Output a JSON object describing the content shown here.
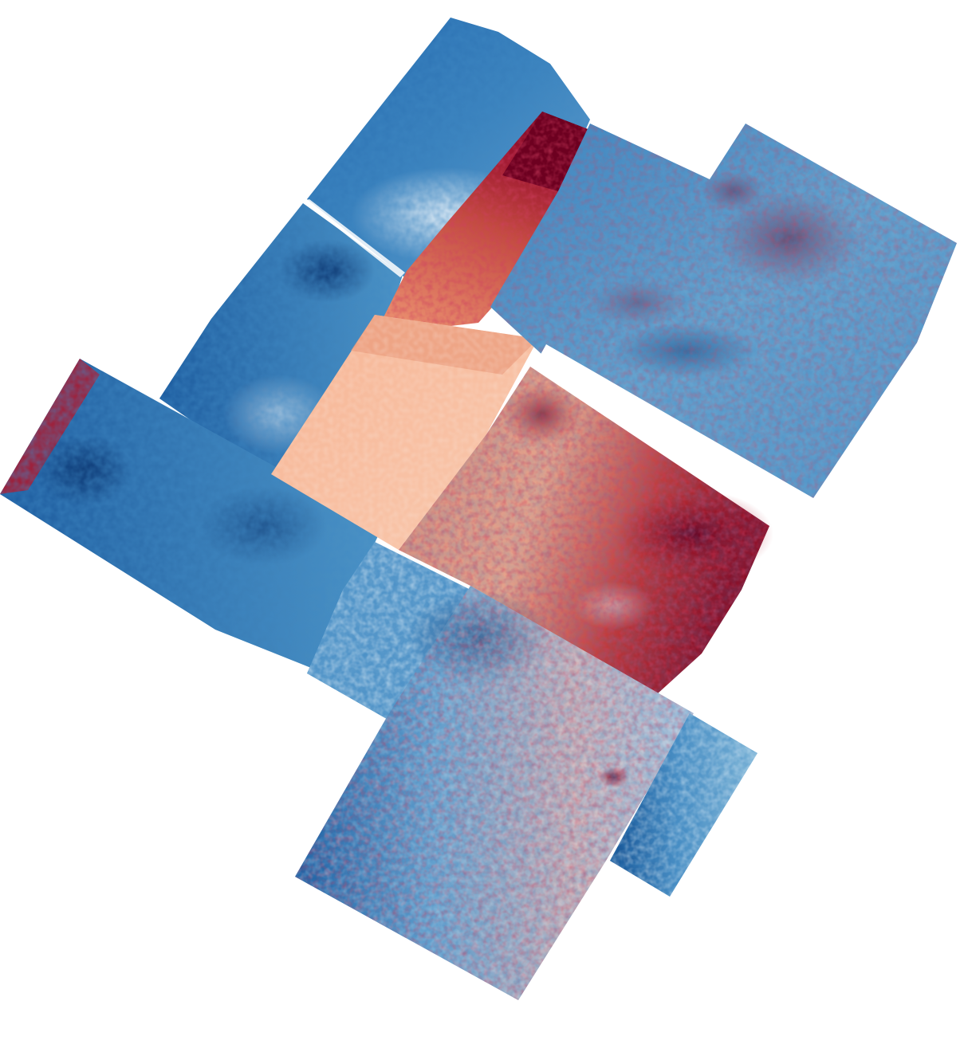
{
  "colormap": {
    "name": "RdBu_r",
    "stops": [
      "#08306b",
      "#2166ac",
      "#4393c3",
      "#92c5de",
      "#d1e5f0",
      "#f7f7f7",
      "#fddbc7",
      "#f4a582",
      "#d6604d",
      "#b2182b",
      "#67001f"
    ]
  },
  "tiles": [
    {
      "name": "tile-northwest-upper",
      "tone": "blue"
    },
    {
      "name": "tile-north-red-strip",
      "tone": "red"
    },
    {
      "name": "tile-northwest-middle",
      "tone": "blue"
    },
    {
      "name": "tile-west-long",
      "tone": "blue"
    },
    {
      "name": "tile-center-warm",
      "tone": "red"
    },
    {
      "name": "tile-northeast-large",
      "tone": "mixed"
    },
    {
      "name": "tile-east-hotspot",
      "tone": "mixed"
    },
    {
      "name": "tile-south-middle",
      "tone": "blue"
    },
    {
      "name": "tile-south-large",
      "tone": "mixed"
    },
    {
      "name": "tile-southeast-small",
      "tone": "blue"
    }
  ]
}
